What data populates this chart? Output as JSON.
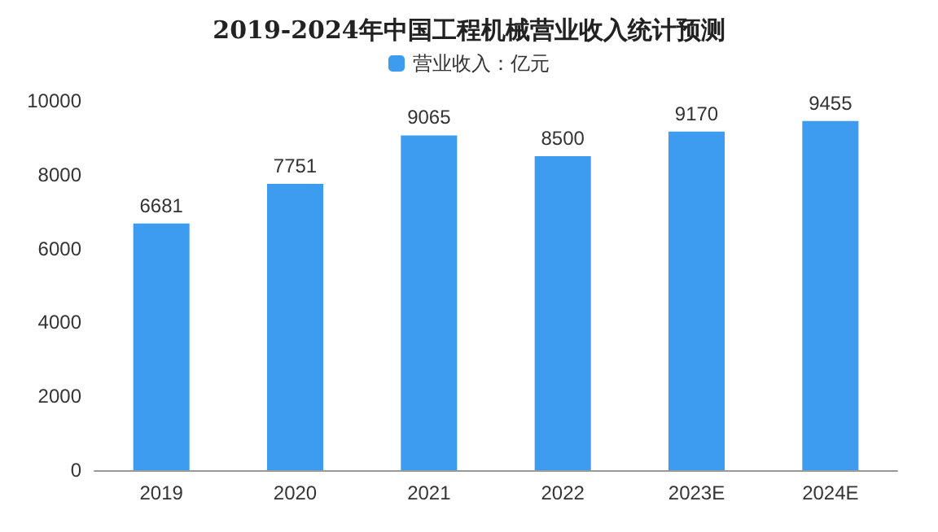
{
  "chart_data": {
    "type": "bar",
    "title": "2019-2024年中国工程机械营业收入统计预测",
    "categories": [
      "2019",
      "2020",
      "2021",
      "2022",
      "2023E",
      "2024E"
    ],
    "series": [
      {
        "name": "营业收入：亿元",
        "color": "#3d9cf0",
        "values": [
          6681,
          7751,
          9065,
          8500,
          9170,
          9455
        ]
      }
    ],
    "ylim": [
      0,
      10000
    ],
    "yticks": [
      0,
      2000,
      4000,
      6000,
      8000,
      10000
    ],
    "data_labels": true,
    "legend": "top",
    "grid": false
  }
}
